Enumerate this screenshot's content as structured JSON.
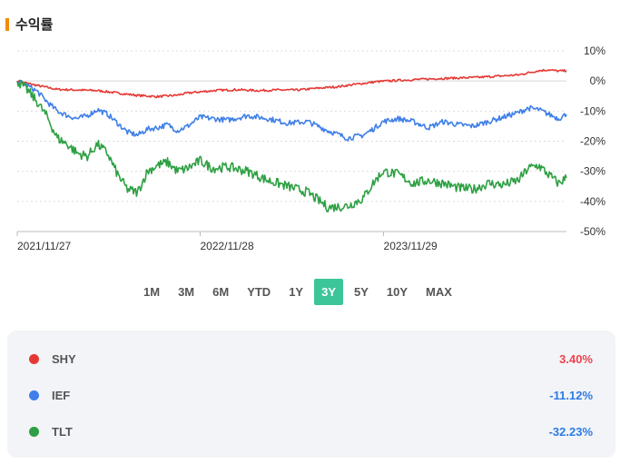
{
  "header": {
    "title": "수익률"
  },
  "range": {
    "tabs": [
      "1M",
      "3M",
      "6M",
      "YTD",
      "1Y",
      "3Y",
      "5Y",
      "10Y",
      "MAX"
    ],
    "active": "3Y"
  },
  "legend": [
    {
      "symbol": "SHY",
      "value": "3.40%",
      "color": "#e53935",
      "value_color": "#f0424f"
    },
    {
      "symbol": "IEF",
      "value": "-11.12%",
      "color": "#3f7fe8",
      "value_color": "#2d7be5"
    },
    {
      "symbol": "TLT",
      "value": "-32.23%",
      "color": "#2ea043",
      "value_color": "#2d7be5"
    }
  ],
  "chart_data": {
    "type": "line",
    "y_tick_labels": [
      "10%",
      "0%",
      "-10%",
      "-20%",
      "-30%",
      "-40%",
      "-50%"
    ],
    "y_ticks": [
      10,
      0,
      -10,
      -20,
      -30,
      -40,
      -50
    ],
    "ylim": [
      -50,
      10
    ],
    "x_tick_labels": [
      "2021/11/27",
      "2022/11/28",
      "2023/11/29"
    ],
    "x_tick_positions": [
      0,
      365,
      731
    ],
    "xlim": [
      0,
      1096
    ],
    "grid": true,
    "series": [
      {
        "name": "SHY",
        "color": "#e53935",
        "x": [
          0,
          40,
          80,
          120,
          160,
          200,
          240,
          280,
          320,
          340,
          365,
          400,
          440,
          480,
          520,
          560,
          600,
          640,
          680,
          720,
          760,
          800,
          840,
          880,
          920,
          960,
          1000,
          1040,
          1060,
          1080,
          1096
        ],
        "y": [
          0,
          -1.5,
          -2.8,
          -3.0,
          -3.2,
          -4.0,
          -4.8,
          -5.2,
          -4.7,
          -4.0,
          -3.6,
          -3.1,
          -2.9,
          -3.2,
          -3.0,
          -3.0,
          -2.4,
          -1.9,
          -1.0,
          -0.2,
          0.2,
          0.5,
          0.8,
          1.0,
          1.2,
          1.6,
          2.0,
          3.4,
          3.7,
          3.3,
          3.4
        ]
      },
      {
        "name": "IEF",
        "color": "#3f7fe8",
        "x": [
          0,
          20,
          40,
          60,
          80,
          100,
          120,
          140,
          160,
          180,
          200,
          220,
          240,
          260,
          280,
          300,
          320,
          340,
          365,
          390,
          420,
          460,
          500,
          540,
          580,
          620,
          660,
          690,
          710,
          730,
          760,
          790,
          820,
          850,
          880,
          910,
          940,
          970,
          1000,
          1020,
          1040,
          1060,
          1080,
          1096
        ],
        "y": [
          0,
          -1.5,
          -3.5,
          -7,
          -10,
          -11.5,
          -12.5,
          -11.5,
          -9.5,
          -11,
          -14,
          -17,
          -18,
          -16,
          -15.5,
          -14.5,
          -16.5,
          -15,
          -12,
          -12.5,
          -13,
          -11.5,
          -12.5,
          -14,
          -13.5,
          -16.5,
          -19,
          -18,
          -16,
          -13.5,
          -12.5,
          -13.5,
          -15.5,
          -13.5,
          -14.5,
          -15,
          -13.5,
          -12,
          -10.5,
          -9,
          -9.5,
          -11,
          -12.5,
          -11.1
        ]
      },
      {
        "name": "TLT",
        "color": "#2ea043",
        "x": [
          0,
          20,
          40,
          60,
          80,
          100,
          120,
          140,
          160,
          180,
          200,
          220,
          240,
          260,
          280,
          300,
          320,
          340,
          365,
          390,
          420,
          460,
          500,
          540,
          580,
          620,
          660,
          690,
          710,
          730,
          760,
          790,
          820,
          850,
          880,
          910,
          940,
          970,
          1000,
          1020,
          1040,
          1060,
          1080,
          1096
        ],
        "y": [
          0,
          -3,
          -7,
          -12,
          -19,
          -21,
          -24,
          -25,
          -21,
          -24,
          -31,
          -36,
          -37,
          -30,
          -28,
          -27,
          -30,
          -29,
          -26.5,
          -29,
          -28.5,
          -30,
          -33,
          -35,
          -37,
          -42,
          -41.5,
          -39,
          -34,
          -30,
          -31,
          -34,
          -33,
          -34,
          -35.5,
          -36,
          -34,
          -34.5,
          -33,
          -29,
          -28,
          -31,
          -34,
          -32.2
        ]
      }
    ]
  }
}
